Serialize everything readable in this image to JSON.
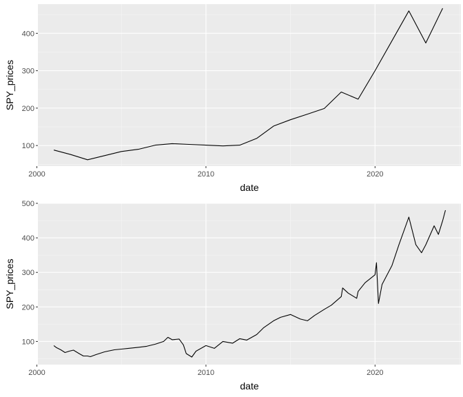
{
  "colors": {
    "panel_background": "#EBEBEB",
    "grid_major": "#FFFFFF",
    "grid_minor": "#F5F5F5",
    "line": "#000000",
    "tick_text": "#4D4D4D",
    "tick_mark": "#333333"
  },
  "chart_data": [
    {
      "type": "line",
      "xlabel": "date",
      "ylabel": "SPY_prices",
      "xlim": [
        2000.06,
        2025.08
      ],
      "ylim": [
        45,
        478
      ],
      "x_ticks": [
        2000,
        2010,
        2020
      ],
      "x_tick_labels": [
        "2000",
        "2010",
        "2020"
      ],
      "y_ticks": [
        100,
        200,
        300,
        400
      ],
      "y_tick_labels": [
        "100",
        "200",
        "300",
        "400"
      ],
      "grid": true,
      "series": [
        {
          "x": [
            "2001-01-01",
            "2002-01-01",
            "2003-01-01",
            "2004-01-01",
            "2005-01-01",
            "2006-01-01",
            "2007-01-01",
            "2008-01-01",
            "2009-01-01",
            "2010-01-01",
            "2011-01-01",
            "2012-01-01",
            "2013-01-01",
            "2014-01-01",
            "2015-01-01",
            "2016-01-01",
            "2017-01-01",
            "2018-01-01",
            "2019-01-01",
            "2020-01-01",
            "2021-01-01",
            "2022-01-01",
            "2023-01-01",
            "2024-01-01"
          ],
          "y": [
            88,
            76,
            62,
            73,
            84,
            90,
            101,
            105,
            103,
            101,
            99,
            101,
            119,
            152,
            169,
            184,
            199,
            243,
            224,
            300,
            380,
            460,
            374,
            467
          ]
        }
      ]
    },
    {
      "type": "line",
      "xlabel": "date",
      "ylabel": "SPY_prices",
      "xlim": [
        2000.06,
        2025.08
      ],
      "ylim": [
        33,
        500
      ],
      "x_ticks": [
        2000,
        2010,
        2020
      ],
      "x_tick_labels": [
        "2000",
        "2010",
        "2020"
      ],
      "y_ticks": [
        100,
        200,
        300,
        400,
        500
      ],
      "y_tick_labels": [
        "100",
        "200",
        "300",
        "400",
        "500"
      ],
      "grid": true,
      "series": [
        {
          "x": [
            "2001-01-01",
            "2001-03-01",
            "2001-06-01",
            "2001-09-01",
            "2001-12-01",
            "2002-03-01",
            "2002-07-01",
            "2002-10-01",
            "2003-01-01",
            "2003-03-01",
            "2003-07-01",
            "2004-01-01",
            "2004-08-01",
            "2005-01-01",
            "2005-06-01",
            "2006-01-01",
            "2006-07-01",
            "2007-01-01",
            "2007-07-01",
            "2007-10-01",
            "2008-01-01",
            "2008-06-01",
            "2008-09-01",
            "2008-11-01",
            "2009-03-01",
            "2009-06-01",
            "2010-01-01",
            "2010-07-01",
            "2011-01-01",
            "2011-08-01",
            "2012-01-01",
            "2012-06-01",
            "2013-01-01",
            "2013-06-01",
            "2014-01-01",
            "2014-06-01",
            "2015-01-01",
            "2015-08-01",
            "2016-01-01",
            "2016-06-01",
            "2017-01-01",
            "2017-06-01",
            "2018-01-01",
            "2018-02-01",
            "2018-06-01",
            "2018-12-01",
            "2019-01-01",
            "2019-06-01",
            "2020-01-01",
            "2020-02-01",
            "2020-03-15",
            "2020-06-01",
            "2021-01-01",
            "2021-06-01",
            "2022-01-01",
            "2022-06-01",
            "2022-10-01",
            "2023-01-01",
            "2023-07-01",
            "2023-10-01",
            "2024-01-01",
            "2024-03-01"
          ],
          "y": [
            88,
            82,
            76,
            68,
            72,
            75,
            65,
            58,
            58,
            56,
            62,
            70,
            76,
            78,
            80,
            83,
            86,
            92,
            100,
            112,
            105,
            107,
            90,
            65,
            55,
            72,
            88,
            80,
            100,
            95,
            108,
            104,
            120,
            140,
            160,
            170,
            178,
            165,
            160,
            175,
            193,
            205,
            230,
            255,
            240,
            225,
            245,
            270,
            293,
            328,
            210,
            265,
            320,
            380,
            460,
            380,
            357,
            380,
            435,
            410,
            450,
            480
          ]
        }
      ]
    }
  ]
}
